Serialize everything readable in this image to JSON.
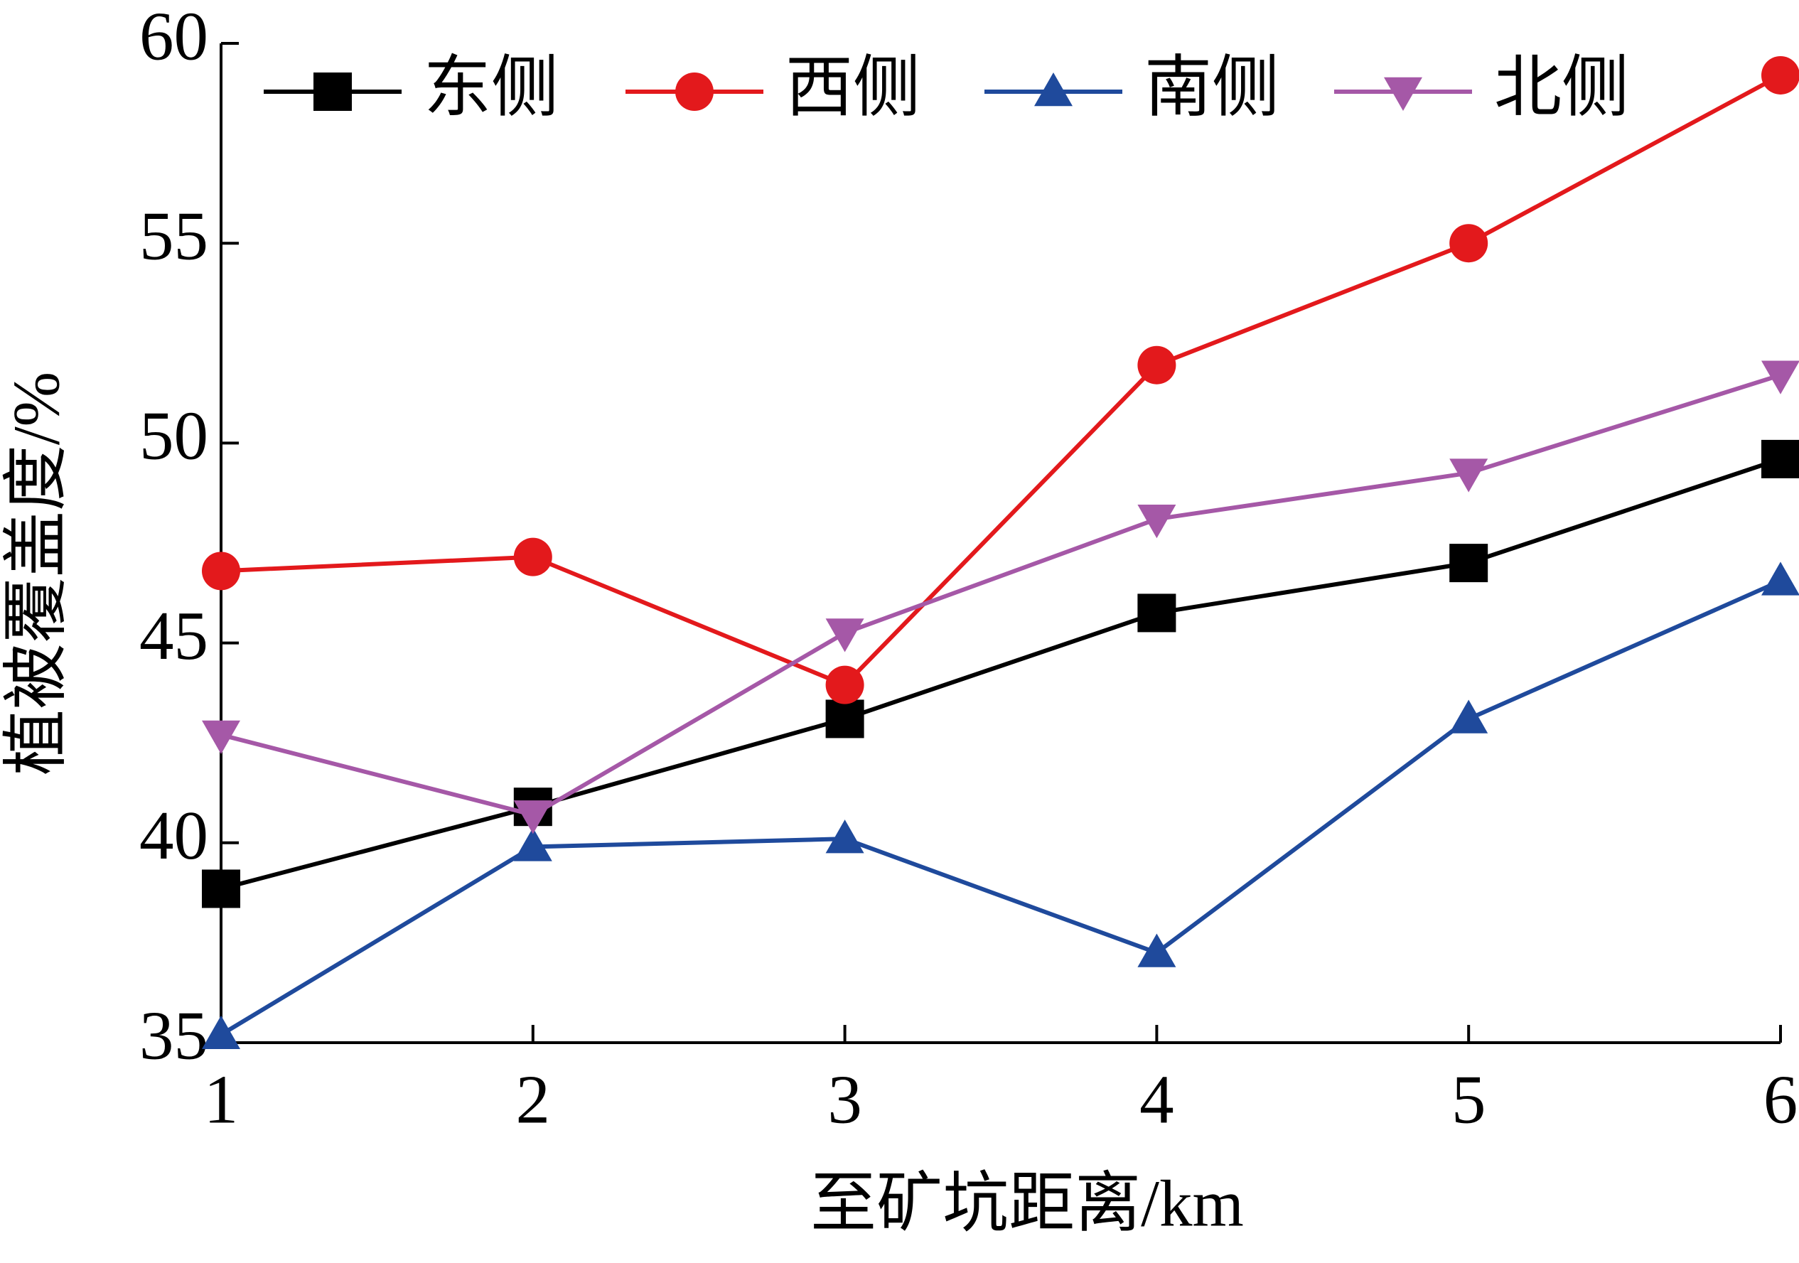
{
  "chart_data": {
    "type": "line",
    "x_label": "至矿坑距离/km",
    "y_label": "植被覆盖度/%",
    "x": [
      1,
      2,
      3,
      4,
      5,
      6
    ],
    "xlim": [
      1,
      6
    ],
    "xticks": [
      1,
      2,
      3,
      4,
      5,
      6
    ],
    "ylim": [
      35,
      60
    ],
    "yticks": [
      35,
      40,
      45,
      50,
      55,
      60
    ],
    "legend_position": "top",
    "series": [
      {
        "name": "东侧",
        "color": "#000000",
        "marker": "square",
        "values": [
          38.85,
          40.9,
          43.1,
          45.75,
          47.0,
          49.6
        ]
      },
      {
        "name": "西侧",
        "color": "#e3191c",
        "marker": "circle",
        "values": [
          46.8,
          47.15,
          43.95,
          51.95,
          55.0,
          59.2
        ]
      },
      {
        "name": "南侧",
        "color": "#1f4a9c",
        "marker": "triangle-up",
        "values": [
          35.2,
          39.9,
          40.1,
          37.25,
          43.1,
          46.55
        ]
      },
      {
        "name": "北侧",
        "color": "#a558a7",
        "marker": "triangle-down",
        "values": [
          42.7,
          40.7,
          45.25,
          48.1,
          49.25,
          51.7
        ]
      }
    ]
  }
}
